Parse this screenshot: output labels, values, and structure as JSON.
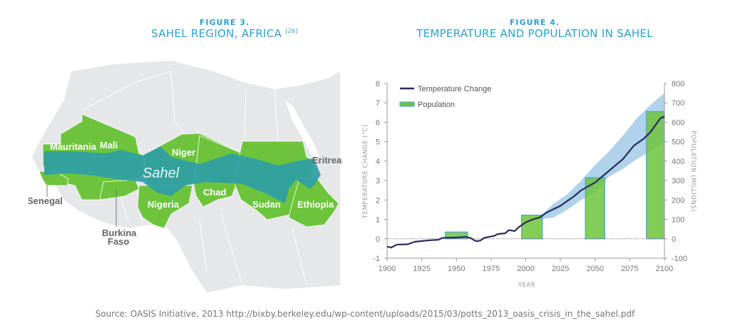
{
  "figure3": {
    "number": "FIGURE 3.",
    "title": "SAHEL REGION, AFRICA",
    "ref": "[26]",
    "map": {
      "region_label": "Sahel",
      "countries": [
        "Mauritania",
        "Mali",
        "Niger",
        "Chad",
        "Sudan",
        "Eritrea",
        "Ethiopia",
        "Nigeria",
        "Senegal",
        "Burkina Faso"
      ],
      "callouts": {
        "senegal": "Senegal",
        "burkina_1": "Burkina",
        "burkina_2": "Faso",
        "eritrea": "Eritrea"
      },
      "colors": {
        "land": "#e6e7e8",
        "country": "#6dc43c",
        "sahel_band": "#2f9ea6",
        "border": "#ffffff"
      }
    }
  },
  "figure4": {
    "number": "FIGURE 4.",
    "title": "TEMPERATURE AND POPULATION IN SAHEL"
  },
  "chart_data": {
    "type": "bar+line",
    "xlabel": "YEAR",
    "ylabel_left": "TEMPERATURE CHANGE (°C)",
    "ylabel_right": "POPULATION (MILLIONS)",
    "xlim": [
      1900,
      2100
    ],
    "ylim_left": [
      -1,
      8
    ],
    "ylim_right": [
      -100,
      800
    ],
    "x_ticks": [
      "1900",
      "1925",
      "1950",
      "1975",
      "2000",
      "2025",
      "2050",
      "2075",
      "2100"
    ],
    "y_ticks_left": [
      "-1",
      "0",
      "1",
      "2",
      "3",
      "4",
      "5",
      "6",
      "7",
      "8"
    ],
    "y_ticks_right": [
      "-100",
      "0",
      "100",
      "200",
      "300",
      "400",
      "500",
      "600",
      "700",
      "800"
    ],
    "legend": {
      "position": "top-left",
      "entries": [
        "Temperature Change",
        "Population"
      ]
    },
    "colors": {
      "temperature": "#262c5e",
      "population": "#6dc43c",
      "population_edge": "#4aa3d8",
      "uncertainty_band": "#a9cde9"
    },
    "population": {
      "name": "Population",
      "bars": [
        {
          "start": 1942,
          "end": 1958,
          "value": 35
        },
        {
          "start": 1997,
          "end": 2012,
          "value": 122
        },
        {
          "start": 2043,
          "end": 2057,
          "value": 315
        },
        {
          "start": 2087,
          "end": 2100,
          "value": 655
        }
      ]
    },
    "temperature": {
      "name": "Temperature Change",
      "x": [
        1900,
        1903,
        1907,
        1915,
        1920,
        1930,
        1937,
        1940,
        1950,
        1957,
        1960,
        1964,
        1967,
        1970,
        1977,
        1980,
        1985,
        1988,
        1992,
        1995,
        2000,
        2005,
        2010,
        2015,
        2025,
        2030,
        2035,
        2040,
        2050,
        2060,
        2070,
        2078,
        2085,
        2090,
        2097,
        2100
      ],
      "y": [
        -0.4,
        -0.45,
        -0.3,
        -0.28,
        -0.15,
        -0.08,
        -0.05,
        0.05,
        0.07,
        0.1,
        0.05,
        -0.12,
        -0.1,
        0.05,
        0.15,
        0.25,
        0.28,
        0.45,
        0.4,
        0.6,
        0.85,
        1.0,
        1.1,
        1.35,
        1.7,
        1.95,
        2.2,
        2.5,
        2.9,
        3.5,
        4.1,
        4.8,
        5.15,
        5.5,
        6.2,
        6.3
      ]
    },
    "uncertainty": {
      "x": [
        2010,
        2020,
        2030,
        2040,
        2050,
        2060,
        2070,
        2080,
        2090,
        2100
      ],
      "upper": [
        1.15,
        1.8,
        2.3,
        3.0,
        3.8,
        4.5,
        5.3,
        6.2,
        6.9,
        7.5
      ],
      "lower": [
        1.0,
        1.1,
        1.5,
        2.0,
        2.4,
        3.2,
        3.6,
        4.1,
        4.5,
        5.0
      ]
    },
    "baseline": 0
  },
  "source": "Source: OASIS Initiative, 2013 http://bixby.berkeley.edu/wp-content/uploads/2015/03/potts_2013_oasis_crisis_in_the_sahel.pdf"
}
